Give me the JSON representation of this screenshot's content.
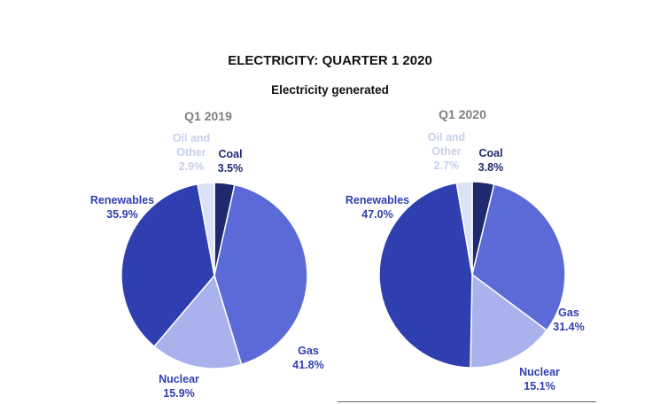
{
  "title": "ELECTRICITY: QUARTER 1 2020",
  "subtitle": "Electricity generated",
  "colors": {
    "coal": "#1f2a6e",
    "gas": "#5b6ad6",
    "nuclear": "#aab2ee",
    "renewables": "#2f3fb0",
    "oil_other": "#dde1f7",
    "oil_label": "#c9cfee",
    "period_label": "#7f7f7f"
  },
  "chart_data": [
    {
      "type": "pie",
      "title": "Q1 2019",
      "slices": [
        {
          "key": "coal",
          "name": "Coal",
          "value": 3.5,
          "label": "3.5%"
        },
        {
          "key": "gas",
          "name": "Gas",
          "value": 41.8,
          "label": "41.8%"
        },
        {
          "key": "nuclear",
          "name": "Nuclear",
          "value": 15.9,
          "label": "15.9%"
        },
        {
          "key": "renewables",
          "name": "Renewables",
          "value": 35.9,
          "label": "35.9%"
        },
        {
          "key": "oil_other",
          "name": "Oil and Other",
          "value": 2.9,
          "label": "2.9%"
        }
      ]
    },
    {
      "type": "pie",
      "title": "Q1 2020",
      "slices": [
        {
          "key": "coal",
          "name": "Coal",
          "value": 3.8,
          "label": "3.8%"
        },
        {
          "key": "gas",
          "name": "Gas",
          "value": 31.4,
          "label": "31.4%"
        },
        {
          "key": "nuclear",
          "name": "Nuclear",
          "value": 15.1,
          "label": "15.1%"
        },
        {
          "key": "renewables",
          "name": "Renewables",
          "value": 47.0,
          "label": "47.0%"
        },
        {
          "key": "oil_other",
          "name": "Oil and Other",
          "value": 2.7,
          "label": "2.7%"
        }
      ]
    }
  ]
}
